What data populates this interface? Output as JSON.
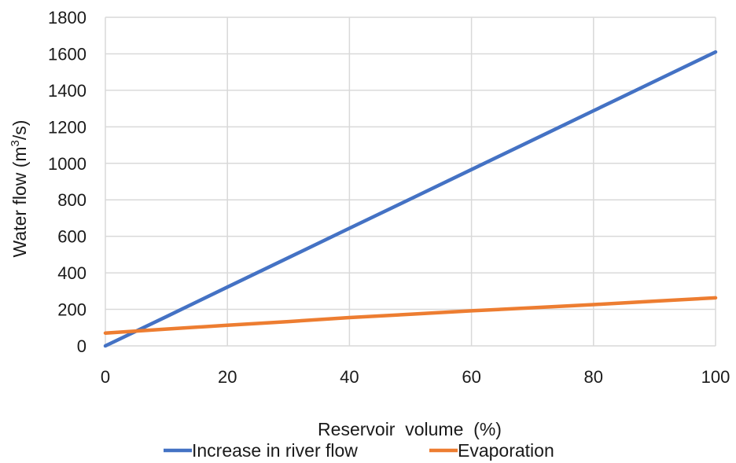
{
  "chart_data": {
    "type": "line",
    "title": "",
    "xlabel": "Reservoir  volume  (%)",
    "ylabel_main": "Water flow (m",
    "ylabel_sup": "3",
    "ylabel_tail": "/s)",
    "xlim": [
      0,
      100
    ],
    "ylim": [
      0,
      1800
    ],
    "xticks": [
      0,
      20,
      40,
      60,
      80,
      100
    ],
    "yticks": [
      0,
      200,
      400,
      600,
      800,
      1000,
      1200,
      1400,
      1600,
      1800
    ],
    "grid": true,
    "legend_position": "bottom",
    "series": [
      {
        "name": "Increase in river flow",
        "color": "#4472C4",
        "x": [
          0,
          10,
          20,
          30,
          40,
          50,
          60,
          70,
          80,
          90,
          100
        ],
        "y": [
          0,
          160,
          322,
          483,
          644,
          805,
          966,
          1127,
          1288,
          1449,
          1610
        ]
      },
      {
        "name": "Evaporation",
        "color": "#ED7D31",
        "x": [
          0,
          10,
          20,
          30,
          40,
          50,
          60,
          70,
          80,
          90,
          100
        ],
        "y": [
          70,
          92,
          113,
          133,
          155,
          173,
          192,
          209,
          226,
          245,
          263
        ]
      }
    ]
  }
}
